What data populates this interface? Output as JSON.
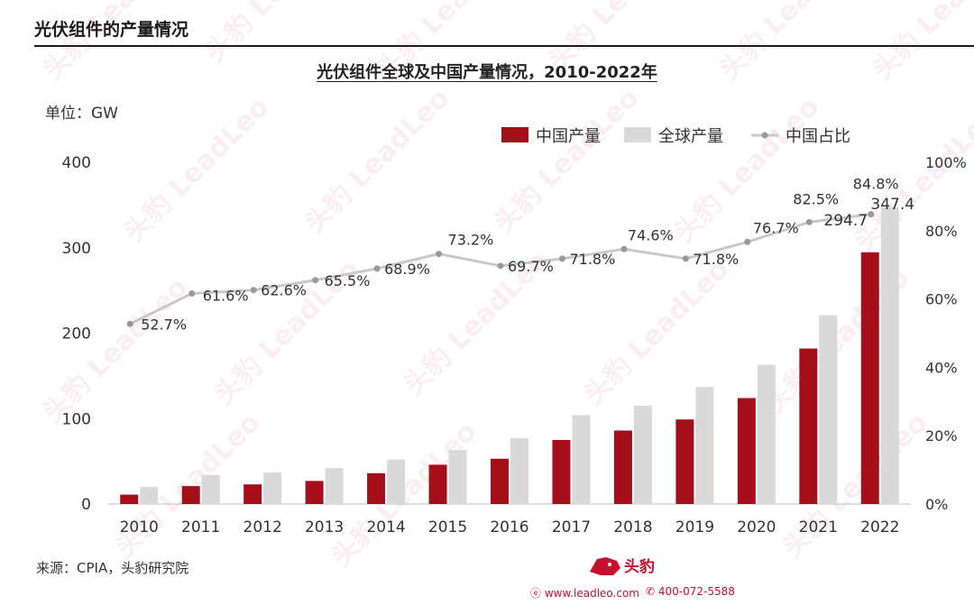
{
  "header": {
    "section_title": "光伏组件的产量情况"
  },
  "chart_data": {
    "type": "bar",
    "title": "光伏组件全球及中国产量情况，2010-2022年",
    "unit_label": "单位：GW",
    "categories": [
      "2010",
      "2011",
      "2012",
      "2013",
      "2014",
      "2015",
      "2016",
      "2017",
      "2018",
      "2019",
      "2020",
      "2021",
      "2022"
    ],
    "series": [
      {
        "name": "中国产量",
        "type": "bar",
        "axis": "left",
        "color": "#a50f1a",
        "values": [
          11,
          21,
          23,
          27,
          36,
          46,
          53,
          75,
          86,
          99,
          124,
          182,
          294.7
        ]
      },
      {
        "name": "全球产量",
        "type": "bar",
        "axis": "left",
        "color": "#d9d9d9",
        "values": [
          20,
          34,
          37,
          42,
          52,
          63,
          77,
          104,
          115,
          137,
          163,
          221,
          347.4
        ]
      },
      {
        "name": "中国占比",
        "type": "line",
        "axis": "right",
        "color": "#c8c8c8",
        "values": [
          52.7,
          61.6,
          62.6,
          65.5,
          68.9,
          73.2,
          69.7,
          71.8,
          74.6,
          71.8,
          76.7,
          82.5,
          84.8
        ]
      }
    ],
    "bar_labels": {
      "中国产量": {
        "12": "294.7"
      },
      "全球产量": {
        "12": "347.4"
      }
    },
    "line_labels": [
      "52.7%",
      "61.6%",
      "62.6%",
      "65.5%",
      "68.9%",
      "73.2%",
      "69.7%",
      "71.8%",
      "74.6%",
      "71.8%",
      "76.7%",
      "82.5%",
      "84.8%"
    ],
    "ylim": [
      0,
      400
    ],
    "yticks": [
      "0",
      "100",
      "200",
      "300",
      "400"
    ],
    "y2lim": [
      0,
      100
    ],
    "y2ticks": [
      "0%",
      "20%",
      "40%",
      "60%",
      "80%",
      "100%"
    ],
    "legend": "top-right",
    "grid": false
  },
  "footer": {
    "source": "来源：CPIA，头豹研究院",
    "brand": "头豹",
    "website": "www.leadleo.com",
    "phone": "400-072-5588",
    "watermark": "头豹 LeadLeo"
  }
}
